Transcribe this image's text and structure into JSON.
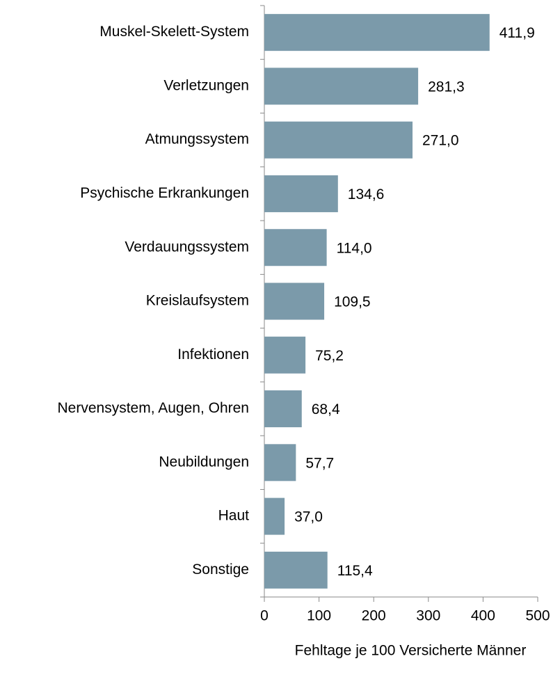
{
  "chart_data": {
    "type": "bar",
    "orientation": "horizontal",
    "x_label": "Fehltage je 100 Versicherte Männer",
    "categories": [
      "Muskel-Skelett-System",
      "Verletzungen",
      "Atmungssystem",
      "Psychische Erkrankungen",
      "Verdauungssystem",
      "Kreislaufsystem",
      "Infektionen",
      "Nervensystem, Augen, Ohren",
      "Neubildungen",
      "Haut",
      "Sonstige"
    ],
    "values": [
      411.9,
      281.3,
      271.0,
      134.6,
      114.0,
      109.5,
      75.2,
      68.4,
      57.7,
      37.0,
      115.4
    ],
    "value_labels": [
      "411,9",
      "281,3",
      "271,0",
      "134,6",
      "114,0",
      "109,5",
      "75,2",
      "68,4",
      "57,7",
      "37,0",
      "115,4"
    ],
    "color": "#7b9aaa",
    "xlim": [
      0,
      500
    ],
    "xticks": [
      0,
      100,
      200,
      300,
      400,
      500
    ],
    "grid": false
  }
}
